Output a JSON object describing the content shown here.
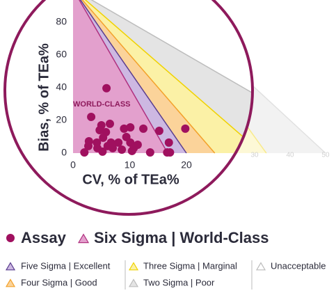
{
  "chart_data": [
    {
      "type": "area",
      "xlim": [
        0,
        50
      ],
      "ylim": [
        0,
        90
      ],
      "xticks": [
        20,
        30,
        40,
        50
      ]
    },
    {
      "type": "scatter",
      "x_label": "CV, % of TEa%",
      "y_label": "Bias, % of TEa%",
      "xlim": [
        0,
        25
      ],
      "ylim": [
        0,
        90
      ],
      "xticks": [
        0,
        10,
        20
      ],
      "yticks": [
        0,
        20,
        40,
        60,
        80
      ],
      "grid": false,
      "annotation": "WORLD-CLASS",
      "zones": [
        {
          "name": "Two Sigma | Poor",
          "fill": "#e4e4e4",
          "color": "#bdbdbd",
          "x": [
            0,
            50
          ],
          "values": [
            100,
            0
          ]
        },
        {
          "name": "Three Sigma | Marginal",
          "fill": "#fbf1a6",
          "color": "#f0d200",
          "x": [
            0,
            33.3
          ],
          "values": [
            100,
            0
          ]
        },
        {
          "name": "Four Sigma | Good",
          "fill": "#fbd39a",
          "color": "#f3a12a",
          "x": [
            0,
            25
          ],
          "values": [
            100,
            0
          ]
        },
        {
          "name": "Five Sigma | Excellent",
          "fill": "#cdb8e2",
          "color": "#5a3d8e",
          "x": [
            0,
            20
          ],
          "values": [
            100,
            0
          ]
        },
        {
          "name": "Six Sigma | World-Class",
          "fill": "#e3a0cd",
          "color": "#b0307f",
          "x": [
            0,
            16.7
          ],
          "values": [
            100,
            0
          ]
        }
      ],
      "unacceptable_label": "Unacceptable",
      "series": [
        {
          "name": "Assay",
          "color": "#a0105f",
          "x": [
            5.9,
            3.2,
            5.0,
            6.5,
            4.7,
            5.8,
            9.0,
            10.1,
            12.4,
            15.2,
            19.8,
            5.3,
            6.7,
            8.0,
            9.4,
            10.1,
            11.4,
            16.9,
            2.8,
            2.7,
            2.0,
            4.3,
            5.2,
            6.1,
            7.0,
            8.6,
            10.4,
            10.7,
            13.6,
            16.6,
            17.1,
            4.2
          ],
          "values": [
            39.6,
            22.1,
            17.0,
            17.9,
            14.0,
            12.8,
            14.9,
            15.7,
            14.9,
            13.6,
            14.9,
            9.4,
            6.4,
            6.4,
            9.8,
            6.4,
            5.1,
            6.4,
            7.2,
            4.3,
            0.4,
            3.0,
            0.9,
            4.3,
            3.0,
            2.1,
            1.3,
            3.0,
            0.4,
            0.4,
            0.4,
            6.4
          ]
        }
      ]
    }
  ]
}
